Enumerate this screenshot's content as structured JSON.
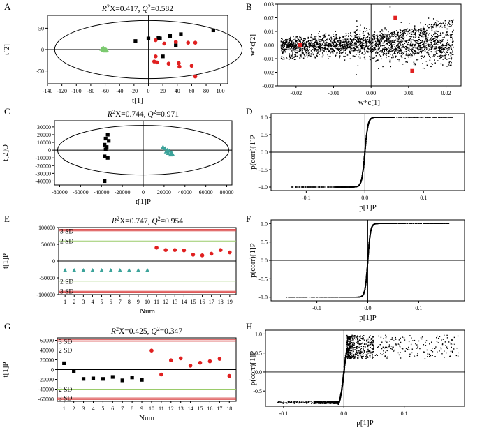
{
  "figure": {
    "panels": [
      "A",
      "B",
      "C",
      "D",
      "E",
      "F",
      "G",
      "H"
    ]
  },
  "chart_data": [
    {
      "id": "A",
      "label": "A",
      "type": "scatter",
      "title": "R²X=0.417, Q²=0.582",
      "title_parts": {
        "r": "R",
        "rsup": "2",
        "rtail": "X=0.417, ",
        "q": "Q",
        "qsup": "2",
        "qtail": "=0.582"
      },
      "xlabel": "t[1]",
      "ylabel": "t[2]",
      "xlim": [
        -140,
        110
      ],
      "ylim": [
        -80,
        80
      ],
      "xticks": [
        -140,
        -120,
        -100,
        -80,
        -60,
        -40,
        -20,
        0,
        20,
        40,
        60,
        80,
        100
      ],
      "yticks": [
        -50,
        0,
        50
      ],
      "xtick_labels": [
        "-140",
        "-120",
        "-100",
        "-80",
        "-60",
        "-40",
        "-20",
        "0",
        "20",
        "40",
        "60",
        "80",
        "100"
      ],
      "ytick_labels": [
        "-50",
        "0",
        "50"
      ],
      "ellipse": {
        "cx": 0,
        "cy": 0,
        "rx": 130,
        "ry": 68
      },
      "series": [
        {
          "name": "green",
          "color": "#7bc96f",
          "marker": "triangle",
          "points": [
            [
              -64,
              2
            ],
            [
              -62,
              1
            ],
            [
              -60,
              0
            ],
            [
              -63,
              -1
            ],
            [
              -61,
              -2
            ],
            [
              -59,
              0
            ],
            [
              -65,
              1
            ],
            [
              -58,
              -1
            ],
            [
              -62,
              3
            ],
            [
              -60,
              -3
            ]
          ]
        },
        {
          "name": "black",
          "color": "#000000",
          "marker": "square",
          "points": [
            [
              -18,
              20
            ],
            [
              0,
              26
            ],
            [
              14,
              27
            ],
            [
              16,
              26
            ],
            [
              30,
              32
            ],
            [
              45,
              36
            ],
            [
              90,
              45
            ],
            [
              20,
              -16
            ],
            [
              38,
              10
            ]
          ]
        },
        {
          "name": "red",
          "color": "#e02020",
          "marker": "circle",
          "points": [
            [
              10,
              22
            ],
            [
              22,
              14
            ],
            [
              38,
              18
            ],
            [
              55,
              16
            ],
            [
              65,
              16
            ],
            [
              8,
              -28
            ],
            [
              12,
              -30
            ],
            [
              28,
              -33
            ],
            [
              42,
              -32
            ],
            [
              43,
              -40
            ],
            [
              60,
              -38
            ],
            [
              65,
              -63
            ],
            [
              10,
              -16
            ]
          ]
        }
      ]
    },
    {
      "id": "B",
      "label": "B",
      "type": "scatter",
      "xlabel": "w*c[1]",
      "ylabel": "w*c[2]",
      "xlim": [
        -0.025,
        0.024
      ],
      "ylim": [
        -0.03,
        0.03
      ],
      "xticks": [
        -0.02,
        -0.01,
        0,
        0.01,
        0.02
      ],
      "yticks": [
        -0.03,
        -0.02,
        -0.01,
        0,
        0.01,
        0.02,
        0.03
      ],
      "xtick_labels": [
        "-0.02",
        "-0.01",
        "0.00",
        "0.01",
        "0.02"
      ],
      "ytick_labels": [
        "-0.03",
        "-0.02",
        "-0.01",
        "0.00",
        "0.01",
        "0.02",
        "0.03"
      ],
      "highlight": [
        [
          -0.019,
          0.0
        ],
        [
          0.0065,
          0.02
        ],
        [
          0.011,
          -0.019
        ]
      ],
      "point_count": 2200
    },
    {
      "id": "C",
      "label": "C",
      "type": "scatter",
      "title": "R²X=0.744, Q²=0.971",
      "title_parts": {
        "r": "R",
        "rsup": "2",
        "rtail": "X=0.744, ",
        "q": "Q",
        "qsup": "2",
        "qtail": "=0.971"
      },
      "xlabel": "t[1]P",
      "ylabel": "t[2]O",
      "xlim": [
        -85000,
        85000
      ],
      "ylim": [
        -45000,
        38000
      ],
      "xticks": [
        -80000,
        -60000,
        -40000,
        -20000,
        0,
        20000,
        40000,
        60000,
        80000
      ],
      "yticks": [
        -40000,
        -30000,
        -20000,
        -10000,
        0,
        10000,
        20000,
        30000
      ],
      "xtick_labels": [
        "-80000",
        "-60000",
        "-40000",
        "-20000",
        "0",
        "20000",
        "40000",
        "60000",
        "80000"
      ],
      "ytick_labels": [
        "-40000",
        "-30000",
        "-20000",
        "-10000",
        "0",
        "10000",
        "20000",
        "30000"
      ],
      "ellipse": {
        "cx": 0,
        "cy": 0,
        "rx": 82000,
        "ry": 32000
      },
      "series": [
        {
          "name": "black",
          "color": "#000000",
          "marker": "square",
          "points": [
            [
              -34000,
              20000
            ],
            [
              -36000,
              15000
            ],
            [
              -33000,
              12000
            ],
            [
              -37000,
              7000
            ],
            [
              -35000,
              4000
            ],
            [
              -36000,
              1000
            ],
            [
              -37000,
              -8000
            ],
            [
              -34000,
              -10000
            ],
            [
              -37000,
              -40000
            ]
          ]
        },
        {
          "name": "teal",
          "color": "#3ba39a",
          "marker": "triangle",
          "points": [
            [
              19000,
              4000
            ],
            [
              21000,
              2000
            ],
            [
              23000,
              0
            ],
            [
              25000,
              -1000
            ],
            [
              22000,
              -2000
            ],
            [
              27000,
              -3000
            ],
            [
              24000,
              -4000
            ],
            [
              26000,
              -6000
            ],
            [
              28000,
              -5000
            ]
          ]
        }
      ]
    },
    {
      "id": "D",
      "label": "D",
      "type": "scatter",
      "xlabel": "p[1]P",
      "ylabel": "p(corr)[1]P",
      "xlim": [
        -0.16,
        0.17
      ],
      "ylim": [
        -1.1,
        1.1
      ],
      "xticks": [
        -0.1,
        0,
        0.1
      ],
      "yticks": [
        -1.0,
        -0.5,
        0,
        0.5,
        1.0
      ],
      "xtick_labels": [
        "-0.1",
        "0.0",
        "0.1"
      ],
      "ytick_labels": [
        "-1.0",
        "-0.5",
        "0.0",
        "0.5",
        "1.0"
      ],
      "curve": {
        "xmin": -0.13,
        "xmax": 0.15,
        "spread": 0.006,
        "tail": "both"
      },
      "point_count": 1600
    },
    {
      "id": "E",
      "label": "E",
      "type": "scatter",
      "title": "R²X=0.747, Q²=0.954",
      "title_parts": {
        "r": "R",
        "rsup": "2",
        "rtail": "X=0.747, ",
        "q": "Q",
        "qsup": "2",
        "qtail": "=0.954"
      },
      "xlabel": "Num",
      "ylabel": "t[1]P",
      "xlim": [
        0.3,
        19.7
      ],
      "ylim": [
        -100000,
        100000
      ],
      "xticks": [
        1,
        2,
        3,
        4,
        5,
        6,
        7,
        8,
        9,
        10,
        11,
        12,
        13,
        14,
        15,
        16,
        17,
        18,
        19
      ],
      "yticks": [
        -100000,
        -50000,
        0,
        50000,
        100000
      ],
      "xtick_labels": [
        "1",
        "2",
        "3",
        "4",
        "5",
        "6",
        "7",
        "8",
        "9",
        "10",
        "11",
        "12",
        "13",
        "14",
        "15",
        "16",
        "17",
        "18",
        "19"
      ],
      "ytick_labels": [
        "-100000",
        "-50000",
        "0",
        "50000",
        "100000"
      ],
      "sd_lines": [
        {
          "label": "3 SD",
          "value": 90000,
          "color": "#d94040"
        },
        {
          "label": "2 SD",
          "value": 60000,
          "color": "#9acb6a"
        },
        {
          "label": "2 SD",
          "value": -60000,
          "color": "#9acb6a"
        },
        {
          "label": "3 SD",
          "value": -90000,
          "color": "#d94040"
        }
      ],
      "series": [
        {
          "name": "teal",
          "color": "#3ba39a",
          "marker": "triangle",
          "points": [
            [
              1,
              -28000
            ],
            [
              2,
              -28000
            ],
            [
              3,
              -28000
            ],
            [
              4,
              -28000
            ],
            [
              5,
              -28000
            ],
            [
              6,
              -28000
            ],
            [
              7,
              -28000
            ],
            [
              8,
              -28000
            ],
            [
              9,
              -28000
            ],
            [
              10,
              -28000
            ]
          ]
        },
        {
          "name": "red",
          "color": "#e02020",
          "marker": "circle",
          "points": [
            [
              11,
              40000
            ],
            [
              12,
              33000
            ],
            [
              13,
              33000
            ],
            [
              14,
              32000
            ],
            [
              15,
              19000
            ],
            [
              16,
              17000
            ],
            [
              17,
              22000
            ],
            [
              18,
              33000
            ],
            [
              19,
              26000
            ]
          ]
        }
      ]
    },
    {
      "id": "F",
      "label": "F",
      "type": "scatter",
      "xlabel": "p[1]P",
      "ylabel": "p(corr)[1]P",
      "xlim": [
        -0.19,
        0.19
      ],
      "ylim": [
        -1.1,
        1.1
      ],
      "xticks": [
        -0.1,
        0,
        0.1
      ],
      "yticks": [
        -1.0,
        -0.5,
        0,
        0.5,
        1.0
      ],
      "xtick_labels": [
        "-0.1",
        "0.0",
        "0.1"
      ],
      "ytick_labels": [
        "-1.0",
        "-0.5",
        "0.0",
        "0.5",
        "1.0"
      ],
      "curve": {
        "xmin": -0.16,
        "xmax": 0.16,
        "spread": 0.006,
        "tail": "both"
      },
      "point_count": 1700
    },
    {
      "id": "G",
      "label": "G",
      "type": "scatter",
      "title": "R²X=0.425, Q²=0.347",
      "title_parts": {
        "r": "R",
        "rsup": "2",
        "rtail": "X=0.425, ",
        "q": "Q",
        "qsup": "2",
        "qtail": "=0.347"
      },
      "xlabel": "Num",
      "ylabel": "t[1]P",
      "xlim": [
        0.3,
        18.7
      ],
      "ylim": [
        -65000,
        65000
      ],
      "xticks": [
        1,
        2,
        3,
        4,
        5,
        6,
        7,
        8,
        9,
        10,
        11,
        12,
        13,
        14,
        15,
        16,
        17,
        18
      ],
      "yticks": [
        -60000,
        -40000,
        -20000,
        0,
        20000,
        40000,
        60000
      ],
      "xtick_labels": [
        "1",
        "2",
        "3",
        "4",
        "5",
        "6",
        "7",
        "8",
        "9",
        "10",
        "11",
        "12",
        "13",
        "14",
        "15",
        "16",
        "17",
        "18"
      ],
      "ytick_labels": [
        "-60000",
        "-40000",
        "-20000",
        "0",
        "20000",
        "40000",
        "60000"
      ],
      "sd_lines": [
        {
          "label": "3 SD",
          "value": 58000,
          "color": "#d94040"
        },
        {
          "label": "2 SD",
          "value": 40000,
          "color": "#9acb6a"
        },
        {
          "label": "2 SD",
          "value": -40000,
          "color": "#9acb6a"
        },
        {
          "label": "3 SD",
          "value": -58000,
          "color": "#d94040"
        }
      ],
      "series": [
        {
          "name": "black",
          "color": "#000000",
          "marker": "square",
          "points": [
            [
              1,
              13000
            ],
            [
              2,
              -3000
            ],
            [
              3,
              -19000
            ],
            [
              4,
              -18000
            ],
            [
              5,
              -19000
            ],
            [
              6,
              -15000
            ],
            [
              7,
              -22000
            ],
            [
              8,
              -16000
            ],
            [
              9,
              -21000
            ]
          ]
        },
        {
          "name": "red",
          "color": "#e02020",
          "marker": "circle",
          "points": [
            [
              10,
              39000
            ],
            [
              11,
              -10000
            ],
            [
              12,
              19000
            ],
            [
              13,
              23000
            ],
            [
              14,
              8000
            ],
            [
              15,
              14000
            ],
            [
              16,
              17000
            ],
            [
              17,
              22000
            ],
            [
              18,
              -13000
            ]
          ]
        }
      ]
    },
    {
      "id": "H",
      "label": "H",
      "type": "scatter",
      "xlabel": "p[1]P",
      "ylabel": "p(corr)[1]P",
      "xlim": [
        -0.13,
        0.2
      ],
      "ylim": [
        -0.9,
        1.1
      ],
      "xticks": [
        -0.1,
        0,
        0.1
      ],
      "yticks": [
        -0.5,
        0,
        0.5,
        1.0
      ],
      "xtick_labels": [
        "-0.1",
        "0.0",
        "0.1"
      ],
      "ytick_labels": [
        "-0.5",
        "0.0",
        "0.5",
        "1.0"
      ],
      "curve": {
        "xmin": -0.11,
        "xmax": 0.19,
        "spread": 0.008,
        "tail": "wide"
      },
      "point_count": 1700
    }
  ]
}
